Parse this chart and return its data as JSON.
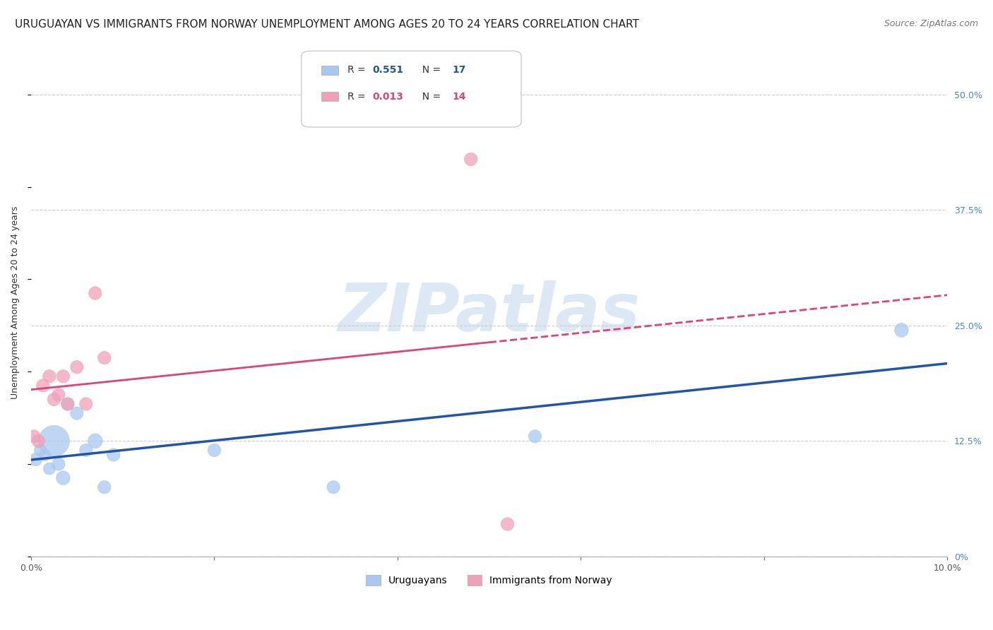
{
  "title": "URUGUAYAN VS IMMIGRANTS FROM NORWAY UNEMPLOYMENT AMONG AGES 20 TO 24 YEARS CORRELATION CHART",
  "source": "Source: ZipAtlas.com",
  "ylabel": "Unemployment Among Ages 20 to 24 years",
  "watermark_text": "ZIPatlas",
  "legend_labels": [
    "Uruguayans",
    "Immigrants from Norway"
  ],
  "r_values": [
    0.551,
    0.013
  ],
  "n_values": [
    17,
    14
  ],
  "uruguayans_x": [
    0.0005,
    0.001,
    0.0015,
    0.002,
    0.0025,
    0.003,
    0.0035,
    0.004,
    0.005,
    0.006,
    0.007,
    0.008,
    0.009,
    0.02,
    0.033,
    0.055,
    0.095
  ],
  "uruguayans_y": [
    0.105,
    0.115,
    0.11,
    0.095,
    0.125,
    0.1,
    0.085,
    0.165,
    0.155,
    0.115,
    0.125,
    0.075,
    0.11,
    0.115,
    0.075,
    0.13,
    0.245
  ],
  "uruguayans_size": [
    35,
    30,
    30,
    30,
    200,
    35,
    40,
    35,
    35,
    35,
    45,
    35,
    35,
    35,
    35,
    35,
    40
  ],
  "norway_x": [
    0.0003,
    0.0008,
    0.0013,
    0.002,
    0.0025,
    0.003,
    0.0035,
    0.004,
    0.005,
    0.006,
    0.007,
    0.008,
    0.048,
    0.052
  ],
  "norway_y": [
    0.13,
    0.125,
    0.185,
    0.195,
    0.17,
    0.175,
    0.195,
    0.165,
    0.205,
    0.165,
    0.285,
    0.215,
    0.43,
    0.035
  ],
  "norway_size": [
    35,
    35,
    35,
    35,
    35,
    35,
    35,
    35,
    35,
    35,
    35,
    35,
    35,
    35
  ],
  "blue_color": "#a8c8f0",
  "pink_color": "#f0a0b8",
  "blue_line_color": "#2255aa",
  "pink_line_color": "#dd4477",
  "grid_color": "#cccccc",
  "background_color": "#ffffff",
  "watermark_color": "#dde8f5",
  "title_fontsize": 11,
  "source_fontsize": 9,
  "label_fontsize": 9,
  "tick_fontsize": 9,
  "legend_fontsize": 10,
  "right_tick_color": "#4488cc",
  "xlim": [
    0.0,
    0.1
  ],
  "ylim": [
    0.0,
    0.55
  ],
  "yticks": [
    0.0,
    0.125,
    0.25,
    0.375,
    0.5
  ],
  "ytick_labels_right": [
    "0%",
    "12.5%",
    "25.0%",
    "37.5%",
    "50.0%"
  ],
  "xtick_vals": [
    0.0,
    0.02,
    0.04,
    0.06,
    0.08,
    0.1
  ],
  "xtick_labels": [
    "0.0%",
    "",
    "",
    "",
    "",
    "10.0%"
  ]
}
